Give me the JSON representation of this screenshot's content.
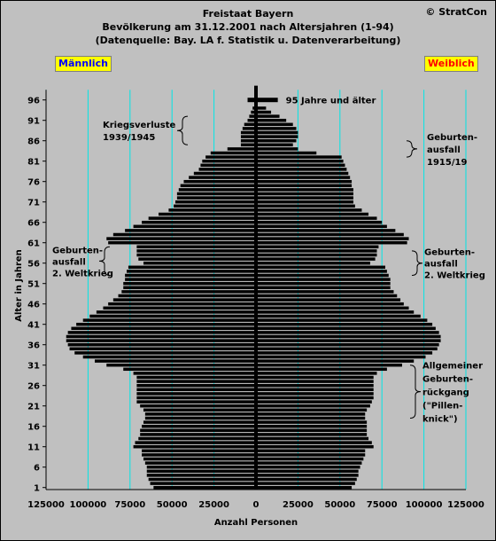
{
  "copyright": "© StratCon",
  "title_lines": [
    "Freistaat Bayern",
    "Bevölkerung am 31.12.2001 nach Altersjahren (1-94)",
    "(Datenquelle: Bay. LA f. Statistik u. Datenverarbeitung)"
  ],
  "legend": {
    "male": "Männlich",
    "female": "Weiblich"
  },
  "colors": {
    "background": "#c0c0c0",
    "bars": "#000000",
    "gridlines": "#00e5e5",
    "male_label": "#0000ff",
    "female_label": "#ff0000",
    "legend_bg": "#ffff00"
  },
  "chart_data": {
    "type": "bar",
    "orientation": "horizontal",
    "xlabel": "Anzahl Personen",
    "ylabel": "Alter in Jahren",
    "xlim": [
      -125000,
      125000
    ],
    "ylim": [
      0,
      99
    ],
    "x_ticks": [
      -125000,
      -100000,
      -75000,
      -50000,
      -25000,
      0,
      25000,
      50000,
      75000,
      100000,
      125000
    ],
    "x_tick_labels": [
      "125000",
      "100000",
      "75000",
      "50000",
      "25000",
      "0",
      "25000",
      "50000",
      "75000",
      "100000",
      "125000"
    ],
    "y_ticks": [
      1,
      6,
      11,
      16,
      21,
      26,
      31,
      36,
      41,
      46,
      51,
      56,
      61,
      66,
      71,
      76,
      81,
      86,
      91,
      96
    ],
    "grid": "vertical",
    "ages": [
      1,
      2,
      3,
      4,
      5,
      6,
      7,
      8,
      9,
      10,
      11,
      12,
      13,
      14,
      15,
      16,
      17,
      18,
      19,
      20,
      21,
      22,
      23,
      24,
      25,
      26,
      27,
      28,
      29,
      30,
      31,
      32,
      33,
      34,
      35,
      36,
      37,
      38,
      39,
      40,
      41,
      42,
      43,
      44,
      45,
      46,
      47,
      48,
      49,
      50,
      51,
      52,
      53,
      54,
      55,
      56,
      57,
      58,
      59,
      60,
      61,
      62,
      63,
      64,
      65,
      66,
      67,
      68,
      69,
      70,
      71,
      72,
      73,
      74,
      75,
      76,
      77,
      78,
      79,
      80,
      81,
      82,
      83,
      84,
      85,
      86,
      87,
      88,
      89,
      90,
      91,
      92,
      93,
      94
    ],
    "series": [
      {
        "name": "Männlich",
        "values": [
          61000,
          63000,
          64000,
          65000,
          65000,
          65000,
          66000,
          67000,
          68000,
          68000,
          73000,
          72000,
          70000,
          69000,
          69000,
          68000,
          67000,
          66000,
          66000,
          67000,
          69000,
          71000,
          71000,
          71000,
          71000,
          71000,
          71000,
          71000,
          73000,
          79000,
          89000,
          96000,
          103000,
          108000,
          111000,
          112000,
          113000,
          113000,
          112000,
          110000,
          107000,
          103000,
          99000,
          95000,
          91000,
          88000,
          85000,
          82000,
          80000,
          79000,
          79000,
          78000,
          78000,
          77000,
          76000,
          67000,
          70000,
          71000,
          71000,
          71000,
          88000,
          89000,
          85000,
          78000,
          73000,
          68000,
          64000,
          58000,
          52000,
          49000,
          48000,
          47000,
          47000,
          46000,
          45000,
          43000,
          40000,
          37000,
          34000,
          33000,
          32000,
          30000,
          27000,
          17000,
          9000,
          9000,
          9000,
          9000,
          8000,
          7000,
          5000,
          4000,
          3000,
          2000
        ]
      },
      {
        "name": "Weiblich",
        "values": [
          57000,
          59000,
          60000,
          61000,
          61000,
          62000,
          63000,
          64000,
          65000,
          65000,
          70000,
          69000,
          67000,
          66000,
          66000,
          66000,
          66000,
          65000,
          65000,
          66000,
          68000,
          69000,
          70000,
          70000,
          70000,
          70000,
          70000,
          70000,
          72000,
          78000,
          87000,
          94000,
          101000,
          105000,
          108000,
          109000,
          110000,
          110000,
          109000,
          107000,
          105000,
          102000,
          98000,
          94000,
          91000,
          88000,
          86000,
          84000,
          82000,
          80000,
          80000,
          80000,
          79000,
          78000,
          77000,
          68000,
          71000,
          72000,
          72000,
          73000,
          90000,
          91000,
          88000,
          83000,
          78000,
          75000,
          72000,
          67000,
          63000,
          59000,
          58000,
          58000,
          58000,
          58000,
          57000,
          57000,
          56000,
          55000,
          54000,
          53000,
          52000,
          51000,
          36000,
          25000,
          22000,
          24000,
          25000,
          25000,
          24000,
          22000,
          18000,
          14000,
          9000,
          6000
        ]
      }
    ],
    "special_bar": {
      "age": 96,
      "male": 5000,
      "female": 13000,
      "label": "95 Jahre und älter"
    },
    "annotations": [
      {
        "side": "left",
        "lines": [
          "Kriegsverluste",
          "1939/1945"
        ],
        "age_range": [
          85,
          92
        ]
      },
      {
        "side": "right",
        "lines": [
          "Geburten-",
          "ausfall",
          "1915/19"
        ],
        "age_range": [
          82,
          86
        ]
      },
      {
        "side": "left",
        "lines": [
          "Geburten-",
          "ausfall",
          "2. Weltkrieg"
        ],
        "age_range": [
          53,
          60
        ]
      },
      {
        "side": "right",
        "lines": [
          "Geburten-",
          "ausfall",
          "2. Weltkrieg"
        ],
        "age_range": [
          53,
          59
        ]
      },
      {
        "side": "right",
        "lines": [
          "Allgemeiner",
          "Geburten-",
          "rückgang",
          "(\"Pillen-",
          "knick\")"
        ],
        "age_range": [
          18,
          31
        ]
      }
    ]
  }
}
